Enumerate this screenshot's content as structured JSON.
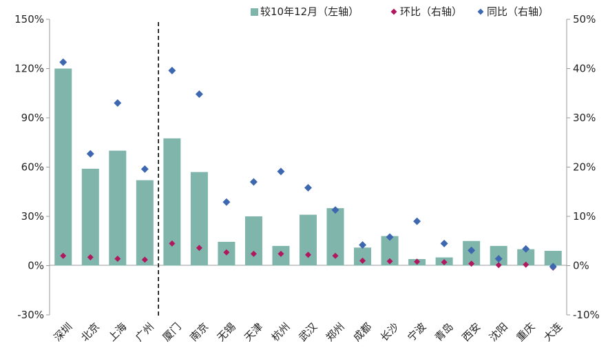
{
  "chart_data": {
    "type": "bar",
    "categories": [
      "深圳",
      "北京",
      "上海",
      "广州",
      "厦门",
      "南京",
      "无锡",
      "天津",
      "杭州",
      "武汉",
      "郑州",
      "成都",
      "长沙",
      "宁波",
      "青岛",
      "西安",
      "沈阳",
      "重庆",
      "大连"
    ],
    "series": [
      {
        "name": "较10年12月（左轴）",
        "type": "bar",
        "axis": "left",
        "color": "#7fb5aa",
        "values": [
          120,
          59,
          70,
          52,
          77.5,
          57,
          14.5,
          30,
          12,
          31,
          35,
          11,
          18,
          4,
          5,
          15,
          12,
          10,
          9
        ]
      },
      {
        "name": "环比（右轴）",
        "type": "scatter",
        "axis": "right",
        "color": "#b0175e",
        "values": [
          2.0,
          1.7,
          1.4,
          1.2,
          4.5,
          3.6,
          2.7,
          2.4,
          2.4,
          2.2,
          2.0,
          1.0,
          0.9,
          0.8,
          0.7,
          0.4,
          0.1,
          0.2,
          -0.4
        ]
      },
      {
        "name": "同比（右轴）",
        "type": "scatter",
        "axis": "right",
        "color": "#3d68b0",
        "values": [
          41.3,
          22.7,
          33.0,
          19.6,
          39.6,
          34.8,
          12.9,
          17.0,
          19.1,
          15.8,
          11.3,
          4.2,
          5.8,
          9.0,
          4.5,
          3.1,
          1.4,
          3.4,
          -0.2
        ]
      }
    ],
    "y_left": {
      "min": -30,
      "max": 150,
      "step": 30,
      "unit": "%"
    },
    "y_right": {
      "min": -10,
      "max": 50,
      "step": 10,
      "unit": "%"
    },
    "divider_after_category": "广州",
    "legend_position": "top-right",
    "grid": false
  }
}
